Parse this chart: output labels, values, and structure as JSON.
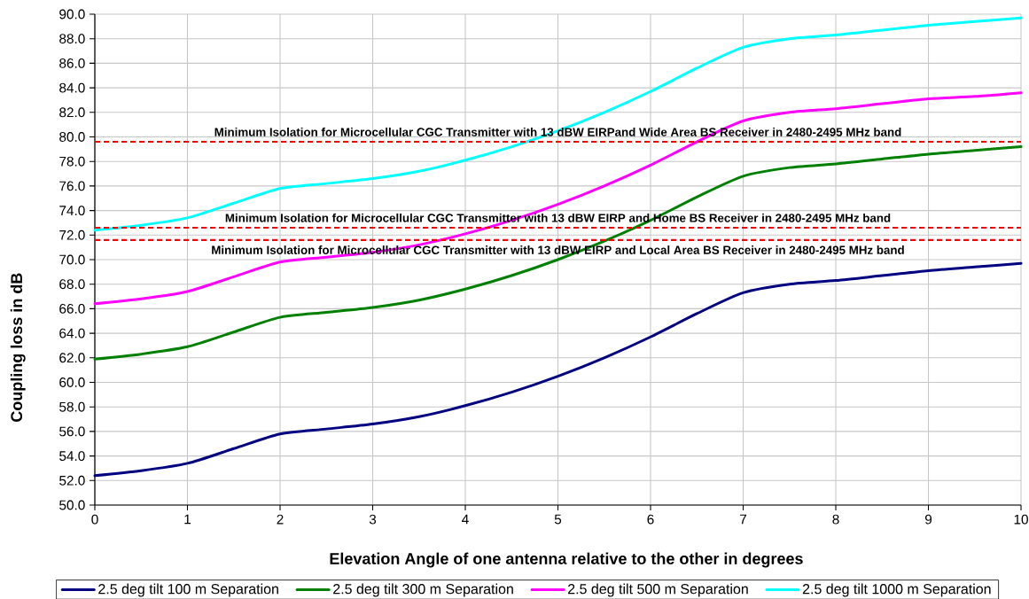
{
  "chart_data": {
    "type": "line",
    "xlabel": "Elevation Angle of one antenna relative to the other in degrees",
    "ylabel": "Coupling loss in dB",
    "x": [
      0,
      0.5,
      1,
      1.5,
      2,
      2.5,
      3,
      3.5,
      4,
      4.5,
      5,
      5.5,
      6,
      6.5,
      7,
      7.5,
      8,
      8.5,
      9,
      9.5,
      10
    ],
    "series": [
      {
        "name": "2.5 deg tilt 100 m Separation",
        "color": "#000080",
        "values": [
          52.4,
          52.8,
          53.4,
          54.6,
          55.8,
          56.2,
          56.6,
          57.2,
          58.1,
          59.2,
          60.5,
          62.0,
          63.7,
          65.6,
          67.3,
          68.0,
          68.3,
          68.7,
          69.1,
          69.4,
          69.7
        ]
      },
      {
        "name": "2.5 deg tilt 300 m Separation",
        "color": "#008000",
        "values": [
          61.9,
          62.3,
          62.9,
          64.1,
          65.3,
          65.7,
          66.1,
          66.7,
          67.6,
          68.7,
          70.0,
          71.5,
          73.2,
          75.1,
          76.8,
          77.5,
          77.8,
          78.2,
          78.6,
          78.9,
          79.2
        ]
      },
      {
        "name": "2.5 deg tilt 500 m Separation",
        "color": "#ff00ff",
        "values": [
          66.4,
          66.8,
          67.4,
          68.6,
          69.8,
          70.2,
          70.6,
          71.2,
          72.1,
          73.2,
          74.5,
          76.0,
          77.7,
          79.6,
          81.3,
          82.0,
          82.3,
          82.7,
          83.1,
          83.3,
          83.6
        ]
      },
      {
        "name": "2.5 deg tilt 1000 m Separation",
        "color": "#00ffff",
        "values": [
          72.4,
          72.8,
          73.4,
          74.6,
          75.8,
          76.2,
          76.6,
          77.2,
          78.1,
          79.2,
          80.5,
          82.0,
          83.7,
          85.6,
          87.3,
          88.0,
          88.3,
          88.7,
          89.1,
          89.4,
          89.7
        ]
      }
    ],
    "xlim": [
      0,
      10
    ],
    "ylim": [
      50,
      90
    ],
    "xticks": [
      0,
      1,
      2,
      3,
      4,
      5,
      6,
      7,
      8,
      9,
      10
    ],
    "yticks": [
      {
        "value": 50,
        "label": "50.0"
      },
      {
        "value": 52,
        "label": "52.0"
      },
      {
        "value": 54,
        "label": "54.0"
      },
      {
        "value": 56,
        "label": "56.0"
      },
      {
        "value": 58,
        "label": "58.0"
      },
      {
        "value": 60,
        "label": "60.0"
      },
      {
        "value": 62,
        "label": "62.0"
      },
      {
        "value": 64,
        "label": "64.0"
      },
      {
        "value": 66,
        "label": "66.0"
      },
      {
        "value": 68,
        "label": "68.0"
      },
      {
        "value": 70,
        "label": "70.0"
      },
      {
        "value": 72,
        "label": "72.0"
      },
      {
        "value": 74,
        "label": "74.0"
      },
      {
        "value": 76,
        "label": "76.0"
      },
      {
        "value": 78,
        "label": "78.0"
      },
      {
        "value": 80,
        "label": "80.0"
      },
      {
        "value": 82,
        "label": "82.0"
      },
      {
        "value": 84,
        "label": "84.0"
      },
      {
        "value": 86,
        "label": "86.0"
      },
      {
        "value": 88,
        "label": "88.0"
      },
      {
        "value": 90,
        "label": "90.0"
      }
    ],
    "grid": true,
    "legend": "bottom",
    "marker": "none",
    "line_style": "solid",
    "ref_lines": [
      {
        "axis": "y",
        "value": 79.6,
        "label": "Minimum Isolation for Microcellular CGC Transmitter with 13 dBW EIRPand Wide Area BS Receiver in 2480-2495 MHz band",
        "color": "#ff0000",
        "line_style": "dashed"
      },
      {
        "axis": "y",
        "value": 72.6,
        "label": "Minimum Isolation for Microcellular CGC Transmitter with 13 dBW EIRP and Home BS Receiver in 2480-2495 MHz band",
        "color": "#ff0000",
        "line_style": "dashed"
      },
      {
        "axis": "y",
        "value": 71.6,
        "label": "Minimum Isolation for Microcellular CGC Transmitter with 13 dBW EIRP and Local Area BS Receiver in 2480-2495 MHz band",
        "color": "#ff0000",
        "line_style": "dashed"
      }
    ]
  }
}
